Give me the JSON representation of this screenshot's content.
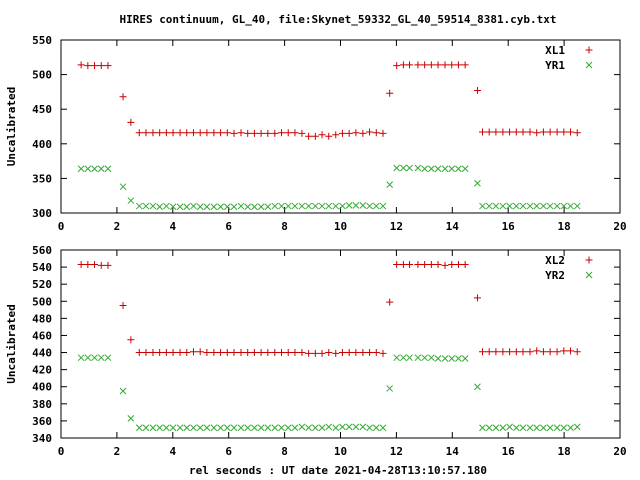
{
  "title": "HIRES continuum, GL_40, file:Skynet_59332_GL_40_59514_8381.cyb.txt",
  "xlabel": "rel seconds : UT date 2021-04-28T13:10:57.180",
  "colors": {
    "series_1": "#cc0000",
    "series_2": "#33aa33"
  },
  "chart_data": [
    {
      "type": "scatter",
      "ylabel": "Uncalibrated",
      "xlim": [
        0,
        20
      ],
      "ylim": [
        300,
        550
      ],
      "xticks": [
        0,
        2,
        4,
        6,
        8,
        10,
        12,
        14,
        16,
        18,
        20
      ],
      "yticks": [
        300,
        350,
        400,
        450,
        500,
        550
      ],
      "grid": false,
      "legend_position": "top-right",
      "series": [
        {
          "name": "XL1",
          "marker": "plus",
          "x": [
            0.72,
            0.96,
            1.2,
            1.44,
            1.68,
            2.22,
            2.5,
            2.8,
            3.04,
            3.29,
            3.53,
            3.77,
            4.01,
            4.26,
            4.5,
            4.74,
            4.98,
            5.22,
            5.47,
            5.71,
            5.95,
            6.19,
            6.44,
            6.68,
            6.92,
            7.16,
            7.4,
            7.65,
            7.89,
            8.13,
            8.37,
            8.62,
            8.86,
            9.1,
            9.34,
            9.58,
            9.83,
            10.07,
            10.31,
            10.55,
            10.8,
            11.04,
            11.28,
            11.52,
            11.76,
            12.01,
            12.25,
            12.47,
            12.77,
            13.01,
            13.25,
            13.49,
            13.74,
            13.98,
            14.22,
            14.46,
            14.9,
            15.08,
            15.32,
            15.56,
            15.81,
            16.05,
            16.29,
            16.53,
            16.78,
            17.02,
            17.26,
            17.5,
            17.75,
            17.99,
            18.23,
            18.47
          ],
          "y": [
            514,
            513,
            513,
            513,
            513,
            468,
            431,
            416,
            416,
            416,
            416,
            416,
            416,
            416,
            416,
            416,
            416,
            416,
            416,
            416,
            416,
            415,
            416,
            415,
            415,
            415,
            415,
            415,
            416,
            416,
            416,
            415,
            411,
            411,
            413,
            411,
            413,
            415,
            415,
            416,
            415,
            417,
            416,
            415,
            473,
            513,
            514,
            514,
            514,
            514,
            514,
            514,
            514,
            514,
            514,
            514,
            477,
            417,
            417,
            417,
            417,
            417,
            417,
            417,
            417,
            416,
            417,
            417,
            417,
            417,
            417,
            416
          ]
        },
        {
          "name": "YR1",
          "marker": "cross",
          "x": [
            0.72,
            0.96,
            1.2,
            1.44,
            1.68,
            2.22,
            2.5,
            2.8,
            3.04,
            3.29,
            3.53,
            3.77,
            4.01,
            4.26,
            4.5,
            4.74,
            4.98,
            5.22,
            5.47,
            5.71,
            5.95,
            6.19,
            6.44,
            6.68,
            6.92,
            7.16,
            7.4,
            7.65,
            7.89,
            8.13,
            8.37,
            8.62,
            8.86,
            9.1,
            9.34,
            9.58,
            9.83,
            10.07,
            10.31,
            10.55,
            10.8,
            11.04,
            11.28,
            11.52,
            11.76,
            12.01,
            12.25,
            12.47,
            12.77,
            13.01,
            13.25,
            13.49,
            13.74,
            13.98,
            14.22,
            14.46,
            14.9,
            15.08,
            15.32,
            15.56,
            15.81,
            16.05,
            16.29,
            16.53,
            16.78,
            17.02,
            17.26,
            17.5,
            17.75,
            17.99,
            18.23,
            18.47
          ],
          "y": [
            364,
            364,
            364,
            364,
            364,
            338,
            318,
            310,
            310,
            310,
            309,
            310,
            309,
            309,
            309,
            310,
            309,
            309,
            309,
            309,
            309,
            309,
            310,
            309,
            309,
            309,
            309,
            310,
            310,
            310,
            310,
            310,
            310,
            310,
            310,
            310,
            310,
            310,
            311,
            311,
            311,
            310,
            310,
            310,
            341,
            365,
            365,
            365,
            365,
            364,
            364,
            364,
            364,
            364,
            364,
            364,
            343,
            310,
            310,
            310,
            310,
            310,
            310,
            310,
            310,
            310,
            310,
            310,
            310,
            310,
            310,
            310
          ]
        }
      ]
    },
    {
      "type": "scatter",
      "ylabel": "Uncalibrated",
      "xlim": [
        0,
        20
      ],
      "ylim": [
        340,
        560
      ],
      "xticks": [
        0,
        2,
        4,
        6,
        8,
        10,
        12,
        14,
        16,
        18,
        20
      ],
      "yticks": [
        340,
        360,
        380,
        400,
        420,
        440,
        460,
        480,
        500,
        520,
        540,
        560
      ],
      "grid": false,
      "legend_position": "top-right",
      "series": [
        {
          "name": "XL2",
          "marker": "plus",
          "x": [
            0.72,
            0.96,
            1.2,
            1.44,
            1.68,
            2.22,
            2.5,
            2.8,
            3.04,
            3.29,
            3.53,
            3.77,
            4.01,
            4.26,
            4.5,
            4.74,
            4.98,
            5.22,
            5.47,
            5.71,
            5.95,
            6.19,
            6.44,
            6.68,
            6.92,
            7.16,
            7.4,
            7.65,
            7.89,
            8.13,
            8.37,
            8.62,
            8.86,
            9.1,
            9.34,
            9.58,
            9.83,
            10.07,
            10.31,
            10.55,
            10.8,
            11.04,
            11.28,
            11.52,
            11.76,
            12.01,
            12.25,
            12.47,
            12.77,
            13.01,
            13.25,
            13.49,
            13.74,
            13.98,
            14.22,
            14.46,
            14.9,
            15.08,
            15.32,
            15.56,
            15.81,
            16.05,
            16.29,
            16.53,
            16.78,
            17.02,
            17.26,
            17.5,
            17.75,
            17.99,
            18.23,
            18.47
          ],
          "y": [
            543,
            543,
            543,
            542,
            542,
            495,
            455,
            440,
            440,
            440,
            440,
            440,
            440,
            440,
            440,
            441,
            441,
            440,
            440,
            440,
            440,
            440,
            440,
            440,
            440,
            440,
            440,
            440,
            440,
            440,
            440,
            440,
            439,
            439,
            439,
            440,
            439,
            440,
            440,
            440,
            440,
            440,
            440,
            439,
            499,
            543,
            543,
            543,
            543,
            543,
            543,
            543,
            542,
            543,
            543,
            543,
            504,
            441,
            441,
            441,
            441,
            441,
            441,
            441,
            441,
            442,
            441,
            441,
            441,
            442,
            442,
            441
          ]
        },
        {
          "name": "YR2",
          "marker": "cross",
          "x": [
            0.72,
            0.96,
            1.2,
            1.44,
            1.68,
            2.22,
            2.5,
            2.8,
            3.04,
            3.29,
            3.53,
            3.77,
            4.01,
            4.26,
            4.5,
            4.74,
            4.98,
            5.22,
            5.47,
            5.71,
            5.95,
            6.19,
            6.44,
            6.68,
            6.92,
            7.16,
            7.4,
            7.65,
            7.89,
            8.13,
            8.37,
            8.62,
            8.86,
            9.1,
            9.34,
            9.58,
            9.83,
            10.07,
            10.31,
            10.55,
            10.8,
            11.04,
            11.28,
            11.52,
            11.76,
            12.01,
            12.25,
            12.47,
            12.77,
            13.01,
            13.25,
            13.49,
            13.74,
            13.98,
            14.22,
            14.46,
            14.9,
            15.08,
            15.32,
            15.56,
            15.81,
            16.05,
            16.29,
            16.53,
            16.78,
            17.02,
            17.26,
            17.5,
            17.75,
            17.99,
            18.23,
            18.47
          ],
          "y": [
            434,
            434,
            434,
            434,
            434,
            395,
            363,
            352,
            352,
            352,
            352,
            352,
            352,
            352,
            352,
            352,
            352,
            352,
            352,
            352,
            352,
            352,
            352,
            352,
            352,
            352,
            352,
            352,
            352,
            352,
            352,
            353,
            352,
            352,
            352,
            353,
            352,
            353,
            353,
            353,
            353,
            352,
            352,
            352,
            398,
            434,
            434,
            434,
            434,
            434,
            434,
            433,
            433,
            433,
            433,
            433,
            400,
            352,
            352,
            352,
            352,
            353,
            352,
            352,
            352,
            352,
            352,
            352,
            352,
            352,
            352,
            353
          ]
        }
      ]
    }
  ]
}
